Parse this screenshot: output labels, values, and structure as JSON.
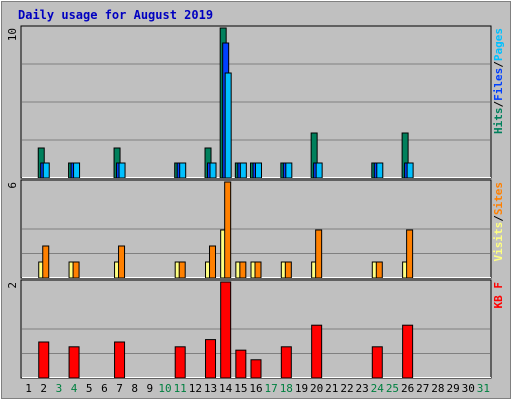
{
  "title": "Daily usage for August 2019",
  "colors": {
    "background": "#c0c0c0",
    "hits": "#00805c",
    "files": "#0040ff",
    "pages": "#00c0ff",
    "visits": "#ffff80",
    "sites": "#ff8000",
    "kbytes": "#ff0000",
    "title": "#0000c0",
    "weekend_label": "#008040"
  },
  "chart_data": [
    {
      "type": "bar",
      "panel": "hits-files-pages",
      "ymax_label": "10",
      "ylim": [
        0,
        10
      ],
      "legend": [
        {
          "label": "Hits",
          "color": "#00805c"
        },
        {
          "label": "Files",
          "color": "#0040ff"
        },
        {
          "label": "Pages",
          "color": "#00c0ff"
        }
      ],
      "days": [
        2,
        4,
        7,
        11,
        13,
        14,
        15,
        16,
        18,
        20,
        24,
        26
      ],
      "series": [
        {
          "name": "Hits",
          "values": [
            2,
            1,
            2,
            1,
            2,
            10,
            1,
            1,
            1,
            3,
            1,
            3
          ]
        },
        {
          "name": "Files",
          "values": [
            1,
            1,
            1,
            1,
            1,
            9,
            1,
            1,
            1,
            1,
            1,
            1
          ]
        },
        {
          "name": "Pages",
          "values": [
            1,
            1,
            1,
            1,
            1,
            7,
            1,
            1,
            1,
            1,
            1,
            1
          ]
        }
      ]
    },
    {
      "type": "bar",
      "panel": "visits-sites",
      "ymax_label": "6",
      "ylim": [
        0,
        6
      ],
      "legend": [
        {
          "label": "Visits",
          "color": "#ffff80"
        },
        {
          "label": "Sites",
          "color": "#ff8000"
        }
      ],
      "days": [
        2,
        4,
        7,
        11,
        13,
        14,
        15,
        16,
        18,
        20,
        24,
        26
      ],
      "series": [
        {
          "name": "Visits",
          "values": [
            1,
            1,
            1,
            1,
            1,
            3,
            1,
            1,
            1,
            1,
            1,
            1
          ]
        },
        {
          "name": "Sites",
          "values": [
            2,
            1,
            2,
            1,
            2,
            6,
            1,
            1,
            1,
            3,
            1,
            3
          ]
        }
      ]
    },
    {
      "type": "bar",
      "panel": "kbytes",
      "ymax_label": "2",
      "ylim": [
        0,
        2
      ],
      "legend": [
        {
          "label": "KB F",
          "color": "#ff0000"
        }
      ],
      "days": [
        2,
        4,
        7,
        11,
        13,
        14,
        15,
        16,
        18,
        20,
        24,
        26
      ],
      "series": [
        {
          "name": "KB F",
          "values": [
            0.75,
            0.65,
            0.75,
            0.65,
            0.8,
            2.0,
            0.58,
            0.38,
            0.65,
            1.1,
            0.65,
            1.1
          ]
        }
      ]
    }
  ],
  "x_axis": {
    "labels": [
      "1",
      "2",
      "3",
      "4",
      "5",
      "6",
      "7",
      "8",
      "9",
      "10",
      "11",
      "12",
      "13",
      "14",
      "15",
      "16",
      "17",
      "18",
      "19",
      "20",
      "21",
      "22",
      "23",
      "24",
      "25",
      "26",
      "27",
      "28",
      "29",
      "30",
      "31"
    ],
    "weekend_days": [
      3,
      4,
      10,
      11,
      17,
      18,
      24,
      25,
      31
    ]
  }
}
